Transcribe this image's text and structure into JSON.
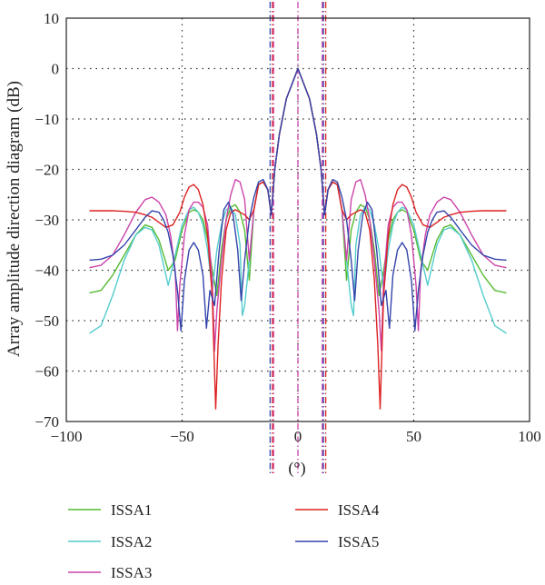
{
  "chart_data": {
    "type": "line",
    "title": "",
    "xlabel": "(°)",
    "ylabel": "Array amplitude direction diagram (dB)",
    "xlim": [
      -100,
      100
    ],
    "ylim": [
      -70,
      10
    ],
    "xticks": [
      -100,
      -50,
      0,
      50,
      100
    ],
    "yticks": [
      10,
      0,
      -10,
      -20,
      -30,
      -40,
      -50,
      -60,
      -70
    ],
    "xtick_labels": [
      "−100",
      "−50",
      "0",
      "50",
      "100"
    ],
    "ytick_labels": [
      "10",
      "0",
      "−10",
      "−20",
      "−30",
      "−40",
      "−50",
      "−60",
      "−70"
    ],
    "grid": true,
    "legend_position": "below",
    "legend_order": [
      "ISSA1",
      "ISSA2",
      "ISSA3",
      "ISSA4",
      "ISSA5"
    ],
    "series": [
      {
        "name": "ISSA1",
        "color": "#55bb33",
        "x": [
          0,
          5,
          8,
          10,
          11.5,
          13,
          15,
          17,
          19,
          21,
          23,
          25,
          27,
          29,
          31,
          33,
          35,
          37,
          39,
          41,
          43,
          45,
          47,
          50,
          53,
          56,
          58,
          60,
          63,
          66,
          70,
          75,
          80,
          85,
          90
        ],
        "y": [
          0,
          -6,
          -13,
          -20,
          -29,
          -24,
          -22.5,
          -23,
          -28,
          -42,
          -32,
          -28.5,
          -27,
          -27.5,
          -30,
          -36,
          -45,
          -40,
          -34,
          -30,
          -28.5,
          -28,
          -28.5,
          -32,
          -38,
          -40,
          -37,
          -34,
          -31.5,
          -31,
          -33,
          -37,
          -41,
          -44,
          -44.5
        ]
      },
      {
        "name": "ISSA2",
        "color": "#55cccc",
        "x": [
          0,
          5,
          8,
          10,
          11.5,
          13,
          15,
          17,
          19,
          21,
          23,
          24,
          25,
          27,
          29,
          31,
          33,
          35,
          37,
          39,
          41,
          43,
          45,
          47,
          50,
          53,
          56,
          58,
          60,
          63,
          66,
          70,
          75,
          80,
          85,
          90
        ],
        "y": [
          0,
          -6,
          -13,
          -20,
          -29,
          -24,
          -22.5,
          -23,
          -28,
          -38,
          -47,
          -49,
          -35,
          -29,
          -27.5,
          -28,
          -31,
          -36,
          -44,
          -36,
          -31,
          -28.5,
          -27.5,
          -28,
          -31,
          -37,
          -43,
          -39,
          -35,
          -32,
          -31.5,
          -33,
          -38,
          -45,
          -51,
          -52.5
        ]
      },
      {
        "name": "ISSA3",
        "color": "#cc44aa",
        "x": [
          0,
          5,
          8,
          10,
          11.5,
          13,
          15,
          17,
          19,
          21,
          23,
          25,
          27,
          29,
          31,
          33,
          35,
          36,
          37,
          39,
          41,
          43,
          45,
          47,
          49,
          51,
          52,
          53,
          55,
          57,
          60,
          63,
          66,
          70,
          75,
          80,
          85,
          90
        ],
        "y": [
          0,
          -6,
          -13,
          -20,
          -29,
          -24,
          -22.5,
          -23,
          -28,
          -38,
          -26,
          -22.5,
          -22,
          -25,
          -30,
          -38,
          -48,
          -56,
          -42,
          -31,
          -27.5,
          -26.5,
          -26.5,
          -28,
          -33,
          -43,
          -52,
          -40,
          -33,
          -29,
          -26.5,
          -25.5,
          -26,
          -28.5,
          -33,
          -37,
          -39,
          -39.5
        ]
      },
      {
        "name": "ISSA4",
        "color": "#dd2222",
        "x": [
          0,
          5,
          8,
          10,
          11.5,
          13,
          15,
          17,
          19,
          21,
          23,
          25,
          27,
          29,
          31,
          33,
          34.5,
          35.5,
          37,
          39,
          41,
          43,
          45,
          47,
          49,
          51,
          54,
          57,
          60,
          63,
          66,
          70,
          75,
          80,
          85,
          90
        ],
        "y": [
          0,
          -6,
          -13,
          -20,
          -29,
          -24,
          -22.5,
          -23,
          -28,
          -30,
          -29,
          -28.5,
          -28,
          -28.5,
          -32,
          -42,
          -55,
          -67.5,
          -45,
          -33,
          -27,
          -24,
          -23,
          -23.5,
          -25.5,
          -28.5,
          -31,
          -31.5,
          -30.5,
          -29.5,
          -29,
          -28.5,
          -28.3,
          -28.2,
          -28.2,
          -28.2
        ]
      },
      {
        "name": "ISSA5",
        "color": "#3344aa",
        "x": [
          0,
          5,
          8,
          10,
          11.5,
          13,
          15,
          17,
          19,
          21,
          23,
          24.5,
          26,
          28,
          30,
          32,
          34,
          36,
          38,
          39.5,
          41,
          43,
          45,
          47,
          49,
          50.5,
          52,
          54,
          56,
          58,
          60,
          63,
          66,
          70,
          75,
          80,
          85,
          90
        ],
        "y": [
          0,
          -6,
          -13,
          -20,
          -29,
          -24,
          -22,
          -22.5,
          -25.5,
          -30,
          -38,
          -46,
          -36,
          -29,
          -26.5,
          -28,
          -36,
          -47,
          -44,
          -51.5,
          -41,
          -36,
          -34.5,
          -36,
          -42,
          -52,
          -44,
          -37,
          -32.5,
          -30,
          -28.5,
          -28.2,
          -29.5,
          -32,
          -35,
          -37,
          -37.8,
          -38
        ]
      }
    ],
    "reference_lines": [
      {
        "x": -12,
        "color": "#3344aa",
        "dash": "dashdot"
      },
      {
        "x": -11,
        "color": "#dd2222",
        "dash": "dashdot"
      },
      {
        "x": -10.5,
        "color": "#cc44aa",
        "dash": "dashdot"
      },
      {
        "x": 0,
        "color": "#cc44aa",
        "dash": "dashdot"
      },
      {
        "x": 10.5,
        "color": "#cc44aa",
        "dash": "dashdot"
      },
      {
        "x": 11,
        "color": "#3344aa",
        "dash": "dashdot"
      },
      {
        "x": 12,
        "color": "#dd2222",
        "dash": "dashdot"
      }
    ]
  }
}
